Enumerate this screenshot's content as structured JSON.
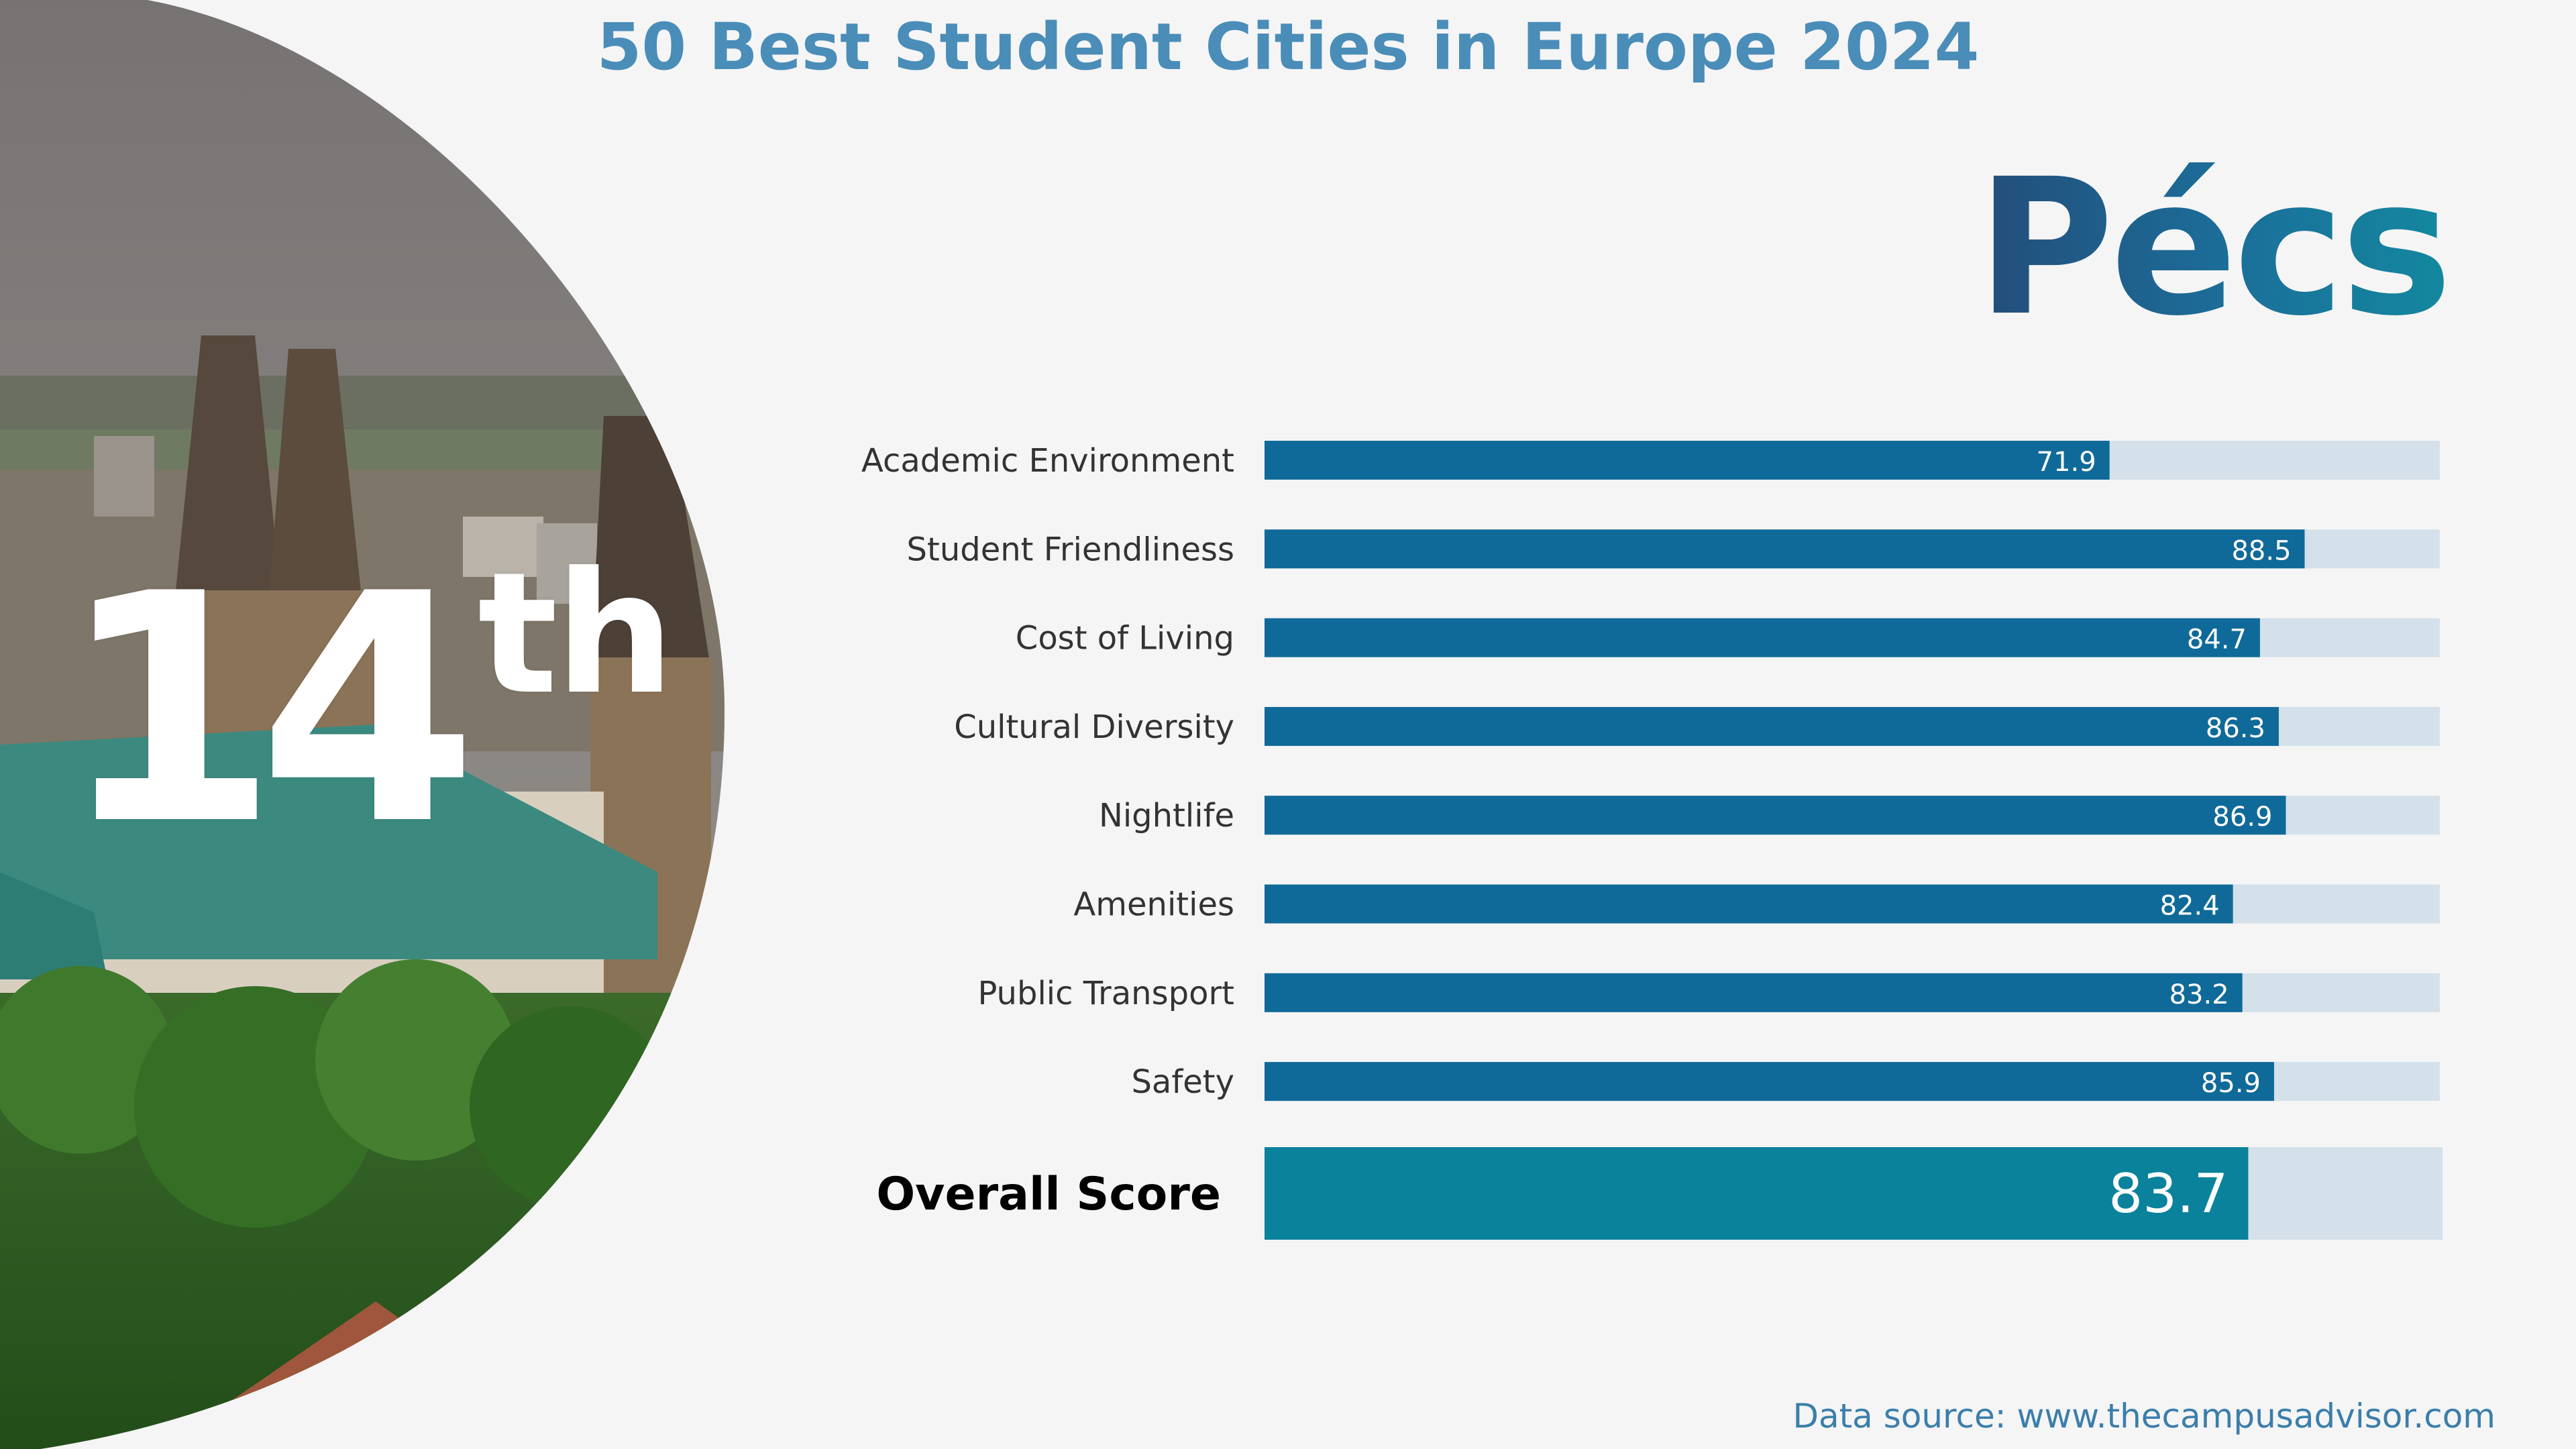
{
  "title": "50 Best Student Cities in Europe 2024",
  "city": "Pécs",
  "rank": {
    "number": "14",
    "suffix": "th"
  },
  "source": "Data source: www.thecampusadvisor.com",
  "colors": {
    "bar": "#106a99",
    "overall_bar": "#0a829c",
    "track": "#d4e1ea",
    "title": "#4a8db8",
    "label": "#333333"
  },
  "chart_data": {
    "type": "bar",
    "orientation": "horizontal",
    "title": "",
    "categories": [
      "Academic Environment",
      "Student Friendliness",
      "Cost of Living",
      "Cultural Diversity",
      "Nightlife",
      "Amenities",
      "Public Transport",
      "Safety"
    ],
    "values": [
      71.9,
      88.5,
      84.7,
      86.3,
      86.9,
      82.4,
      83.2,
      85.9
    ],
    "xlim": [
      0,
      100
    ],
    "overall": {
      "label": "Overall Score",
      "value": 83.7
    },
    "grid": false,
    "legend": "none"
  }
}
